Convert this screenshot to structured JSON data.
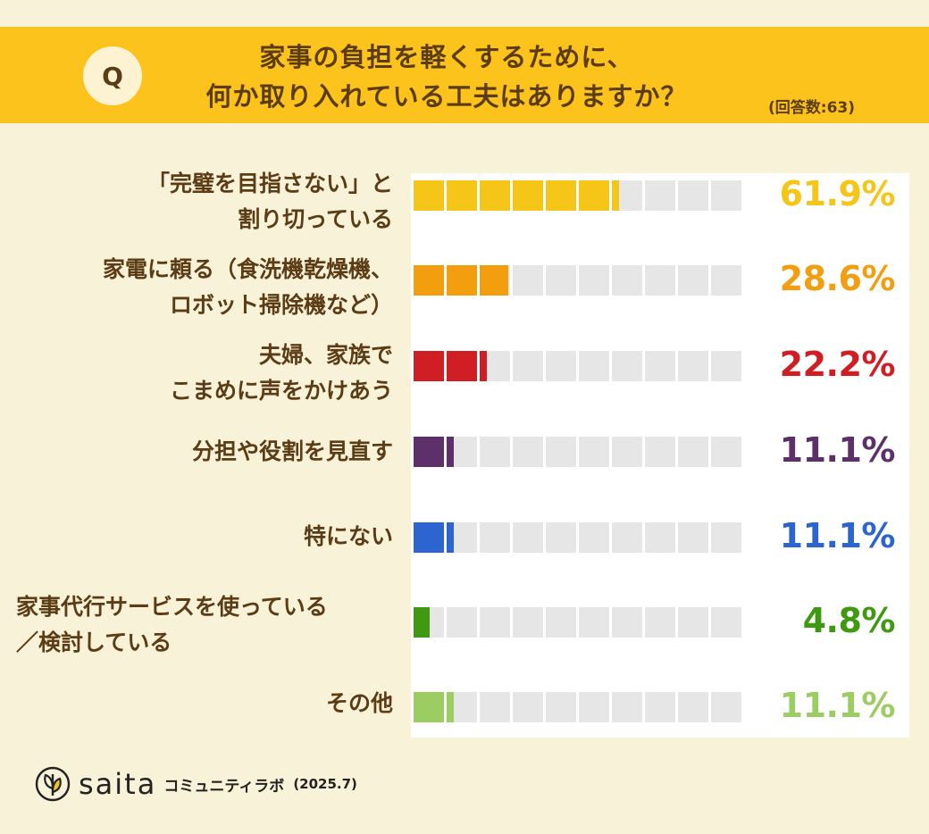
{
  "header": {
    "badge": "Q",
    "title_line1": "家事の負担を軽くするために、",
    "title_line2": "何か取り入れている工夫はありますか？",
    "respondents": "(回答数:63)"
  },
  "chart_data": {
    "type": "bar",
    "orientation": "horizontal",
    "title": "家事の負担を軽くするために、何か取り入れている工夫はありますか？",
    "xlim": [
      0,
      100
    ],
    "segments_per_bar": 10,
    "categories": [
      "「完璧を目指さない」と割り切っている",
      "家電に頼る（食洗機乾燥機、ロボット掃除機など）",
      "夫婦、家族でこまめに声をかけあう",
      "分担や役割を見直す",
      "特にない",
      "家事代行サービスを使っている／検討している",
      "その他"
    ],
    "values": [
      61.9,
      28.6,
      22.2,
      11.1,
      11.1,
      4.8,
      11.1
    ],
    "rows": [
      {
        "label_lines": [
          "「完璧を目指さない」と",
          "割り切っている"
        ],
        "value": 61.9,
        "value_label": "61.9%",
        "color": "#f5c518"
      },
      {
        "label_lines": [
          "家電に頼る（食洗機乾燥機、",
          "ロボット掃除機など）"
        ],
        "value": 28.6,
        "value_label": "28.6%",
        "color": "#f29e0f"
      },
      {
        "label_lines": [
          "夫婦、家族で",
          "こまめに声をかけあう"
        ],
        "value": 22.2,
        "value_label": "22.2%",
        "color": "#cf1f24"
      },
      {
        "label_lines": [
          "分担や役割を見直す"
        ],
        "value": 11.1,
        "value_label": "11.1%",
        "color": "#5e306a"
      },
      {
        "label_lines": [
          "特にない"
        ],
        "value": 11.1,
        "value_label": "11.1%",
        "color": "#2d65d0"
      },
      {
        "label_lines": [
          "家事代行サービスを使っている",
          "／検討している"
        ],
        "value": 4.8,
        "value_label": "4.8%",
        "color": "#3f9a12"
      },
      {
        "label_lines": [
          "その他"
        ],
        "value": 11.1,
        "value_label": "11.1%",
        "color": "#9ccd62"
      }
    ]
  },
  "footer": {
    "brand": "saita",
    "sub": "コミュニティラボ",
    "date": "(2025.7)"
  }
}
